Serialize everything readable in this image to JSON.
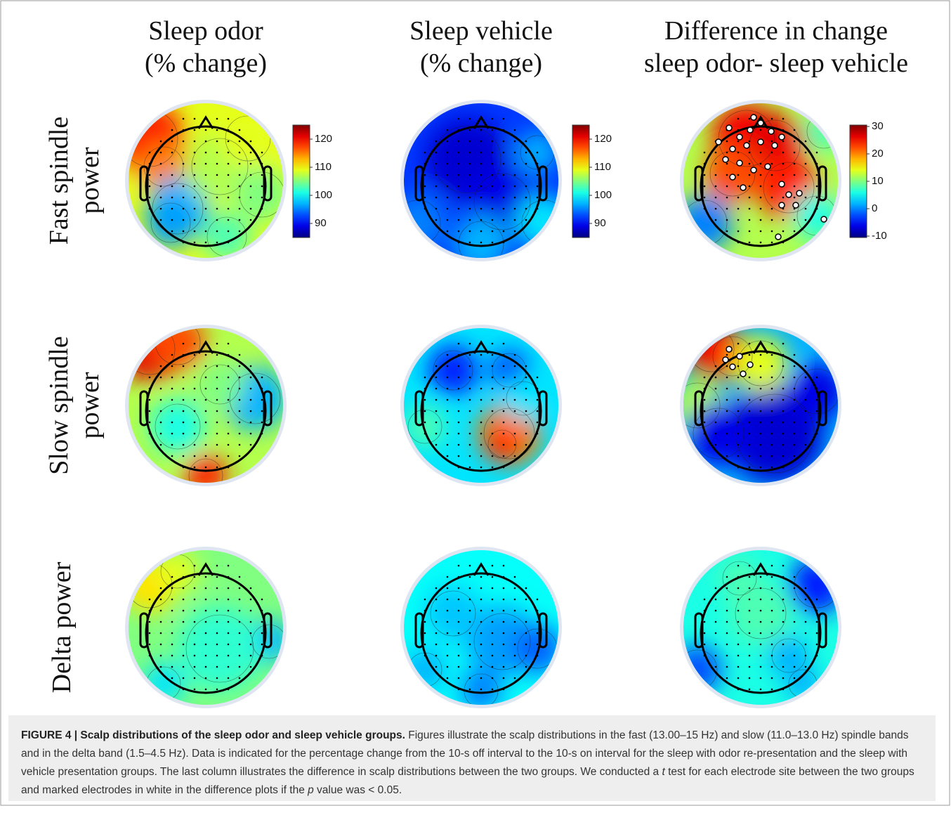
{
  "columns": [
    {
      "line1": "Sleep odor",
      "line2": "(% change)"
    },
    {
      "line1": "Sleep vehicle",
      "line2": "(% change)"
    },
    {
      "line1": "Difference in change",
      "line2": "sleep odor- sleep vehicle"
    }
  ],
  "rows": [
    {
      "line1": "Fast spindle",
      "line2": "power"
    },
    {
      "line1": "Slow spindle",
      "line2": "power"
    },
    {
      "line1": "Delta power"
    }
  ],
  "colorbars": [
    {
      "ticks": [
        120,
        110,
        100,
        90
      ]
    },
    {
      "ticks": [
        120,
        110,
        100,
        90
      ]
    },
    {
      "ticks": [
        30,
        20,
        10,
        0,
        -10
      ]
    }
  ],
  "caption": {
    "label": "FIGURE 4 | Scalp distributions of the sleep odor and sleep vehicle groups.",
    "segments": [
      " Figures illustrate the scalp distributions in the fast (13.00–15 Hz) and slow (11.0–13.0 Hz) spindle bands and in the delta band (1.5–4.5 Hz). Data is indicated for the percentage change from the 10-s off interval to the 10-s on interval for the sleep with odor re-presentation and the sleep with vehicle presentation groups. The last column illustrates the difference in scalp distributions between the two groups. We conducted a ",
      "t",
      " test for each electrode site between the two groups and marked electrodes in white in the difference plots if the ",
      "p",
      " value was < 0.05."
    ]
  }
}
